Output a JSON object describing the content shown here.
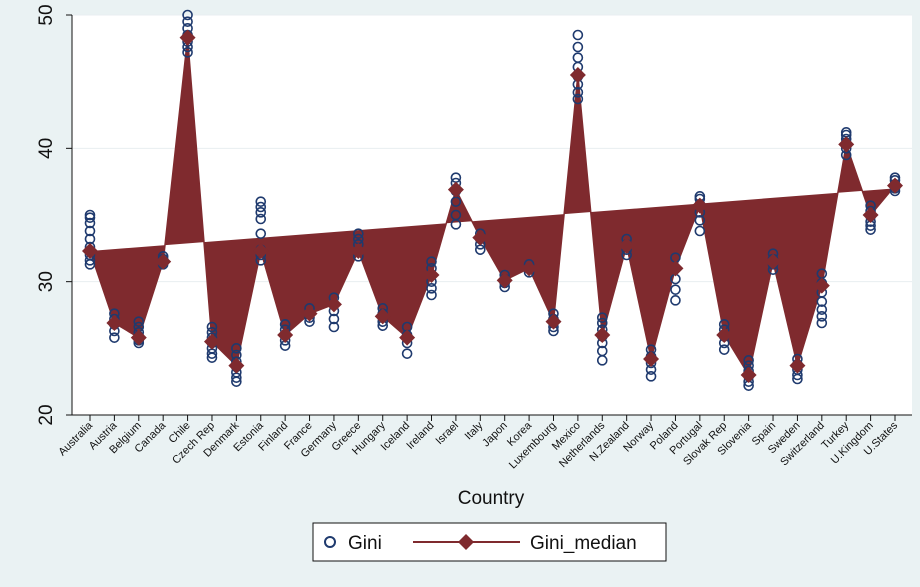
{
  "chart_data": {
    "type": "line",
    "title": "",
    "xlabel": "Country",
    "ylabel": "",
    "ylim": [
      20,
      50
    ],
    "yticks": [
      20,
      30,
      40,
      50
    ],
    "grid": true,
    "legend_position": "bottom",
    "categories": [
      "Australia",
      "Austria",
      "Belgium",
      "Canada",
      "Chile",
      "Czech Rep",
      "Denmark",
      "Estonia",
      "Finland",
      "France",
      "Germany",
      "Greece",
      "Hungary",
      "Iceland",
      "Ireland",
      "Israel",
      "Italy",
      "Japon",
      "Korea",
      "Luxembourg",
      "Mexico",
      "Netherlands",
      "N.Zealand",
      "Norway",
      "Poland",
      "Portugal",
      "Slovak Rep",
      "Slovenia",
      "Spain",
      "Sweden",
      "Switzerland",
      "Turkey",
      "U.Kingdom",
      "U.States"
    ],
    "series": [
      {
        "name": "Gini",
        "kind": "scatter",
        "color": "#1f3a6e",
        "values": [
          [
            31.3,
            31.6,
            32.0,
            32.6,
            33.2,
            33.8,
            34.4,
            34.8,
            35.0
          ],
          [
            25.8,
            26.3,
            26.8,
            27.2,
            27.6
          ],
          [
            25.4,
            25.6,
            25.9,
            26.2,
            26.6,
            27.0
          ],
          [
            31.3,
            31.5,
            31.7,
            31.9
          ],
          [
            47.2,
            47.6,
            48.0,
            48.5,
            49.0,
            49.5,
            50.0
          ],
          [
            24.3,
            24.6,
            25.0,
            25.4,
            25.8,
            26.2,
            26.6
          ],
          [
            22.5,
            22.8,
            23.2,
            23.6,
            24.0,
            24.5,
            25.0
          ],
          [
            31.6,
            32.0,
            32.4,
            33.6,
            34.7,
            35.2,
            35.6,
            36.0
          ],
          [
            25.2,
            25.6,
            26.0,
            26.4,
            26.8
          ],
          [
            27.0,
            27.3,
            27.6,
            28.0
          ],
          [
            26.6,
            27.2,
            27.8,
            28.3,
            28.8
          ],
          [
            31.9,
            32.3,
            32.8,
            33.2,
            33.6
          ],
          [
            26.7,
            27.0,
            27.3,
            27.6,
            28.0
          ],
          [
            24.6,
            25.4,
            26.0,
            26.6
          ],
          [
            29.0,
            29.5,
            30.0,
            30.5,
            31.0,
            31.5
          ],
          [
            34.3,
            35.0,
            36.0,
            36.8,
            37.4,
            37.8
          ],
          [
            32.4,
            32.8,
            33.2,
            33.6
          ],
          [
            29.6,
            29.9,
            30.2,
            30.5
          ],
          [
            30.7,
            31.0,
            31.3
          ],
          [
            26.3,
            26.6,
            26.9,
            27.2,
            27.6
          ],
          [
            43.7,
            44.2,
            44.8,
            45.4,
            46.1,
            46.8,
            47.6,
            48.5
          ],
          [
            24.1,
            24.8,
            25.4,
            25.9,
            26.4,
            26.9,
            27.3
          ],
          [
            32.0,
            32.4,
            32.8,
            33.2
          ],
          [
            22.9,
            23.4,
            23.9,
            24.4,
            24.9
          ],
          [
            28.6,
            29.4,
            30.2,
            31.0,
            31.8
          ],
          [
            33.8,
            34.6,
            35.2,
            35.8,
            36.2,
            36.4
          ],
          [
            24.9,
            25.4,
            25.9,
            26.4,
            26.8
          ],
          [
            22.2,
            22.5,
            22.9,
            23.3,
            23.7,
            24.1
          ],
          [
            30.9,
            31.3,
            31.7,
            32.1
          ],
          [
            22.7,
            23.0,
            23.4,
            23.8,
            24.2
          ],
          [
            26.9,
            27.4,
            27.9,
            28.5,
            29.2,
            29.9,
            30.6
          ],
          [
            39.5,
            40.0,
            40.4,
            40.7,
            41.0,
            41.2
          ],
          [
            33.9,
            34.2,
            34.5,
            34.9,
            35.3,
            35.7
          ],
          [
            36.8,
            37.0,
            37.3,
            37.6,
            37.8
          ]
        ]
      },
      {
        "name": "Gini_median",
        "kind": "line",
        "color": "#7f2a2e",
        "values": [
          32.3,
          26.9,
          25.8,
          31.5,
          48.3,
          25.5,
          23.7,
          32.3,
          26.0,
          27.6,
          28.3,
          32.3,
          27.4,
          25.8,
          30.5,
          36.9,
          33.3,
          30.1,
          31.0,
          27.0,
          45.5,
          26.0,
          32.7,
          24.2,
          31.0,
          35.7,
          26.0,
          23.0,
          31.5,
          23.7,
          29.7,
          40.3,
          35.0,
          37.2
        ]
      }
    ]
  }
}
